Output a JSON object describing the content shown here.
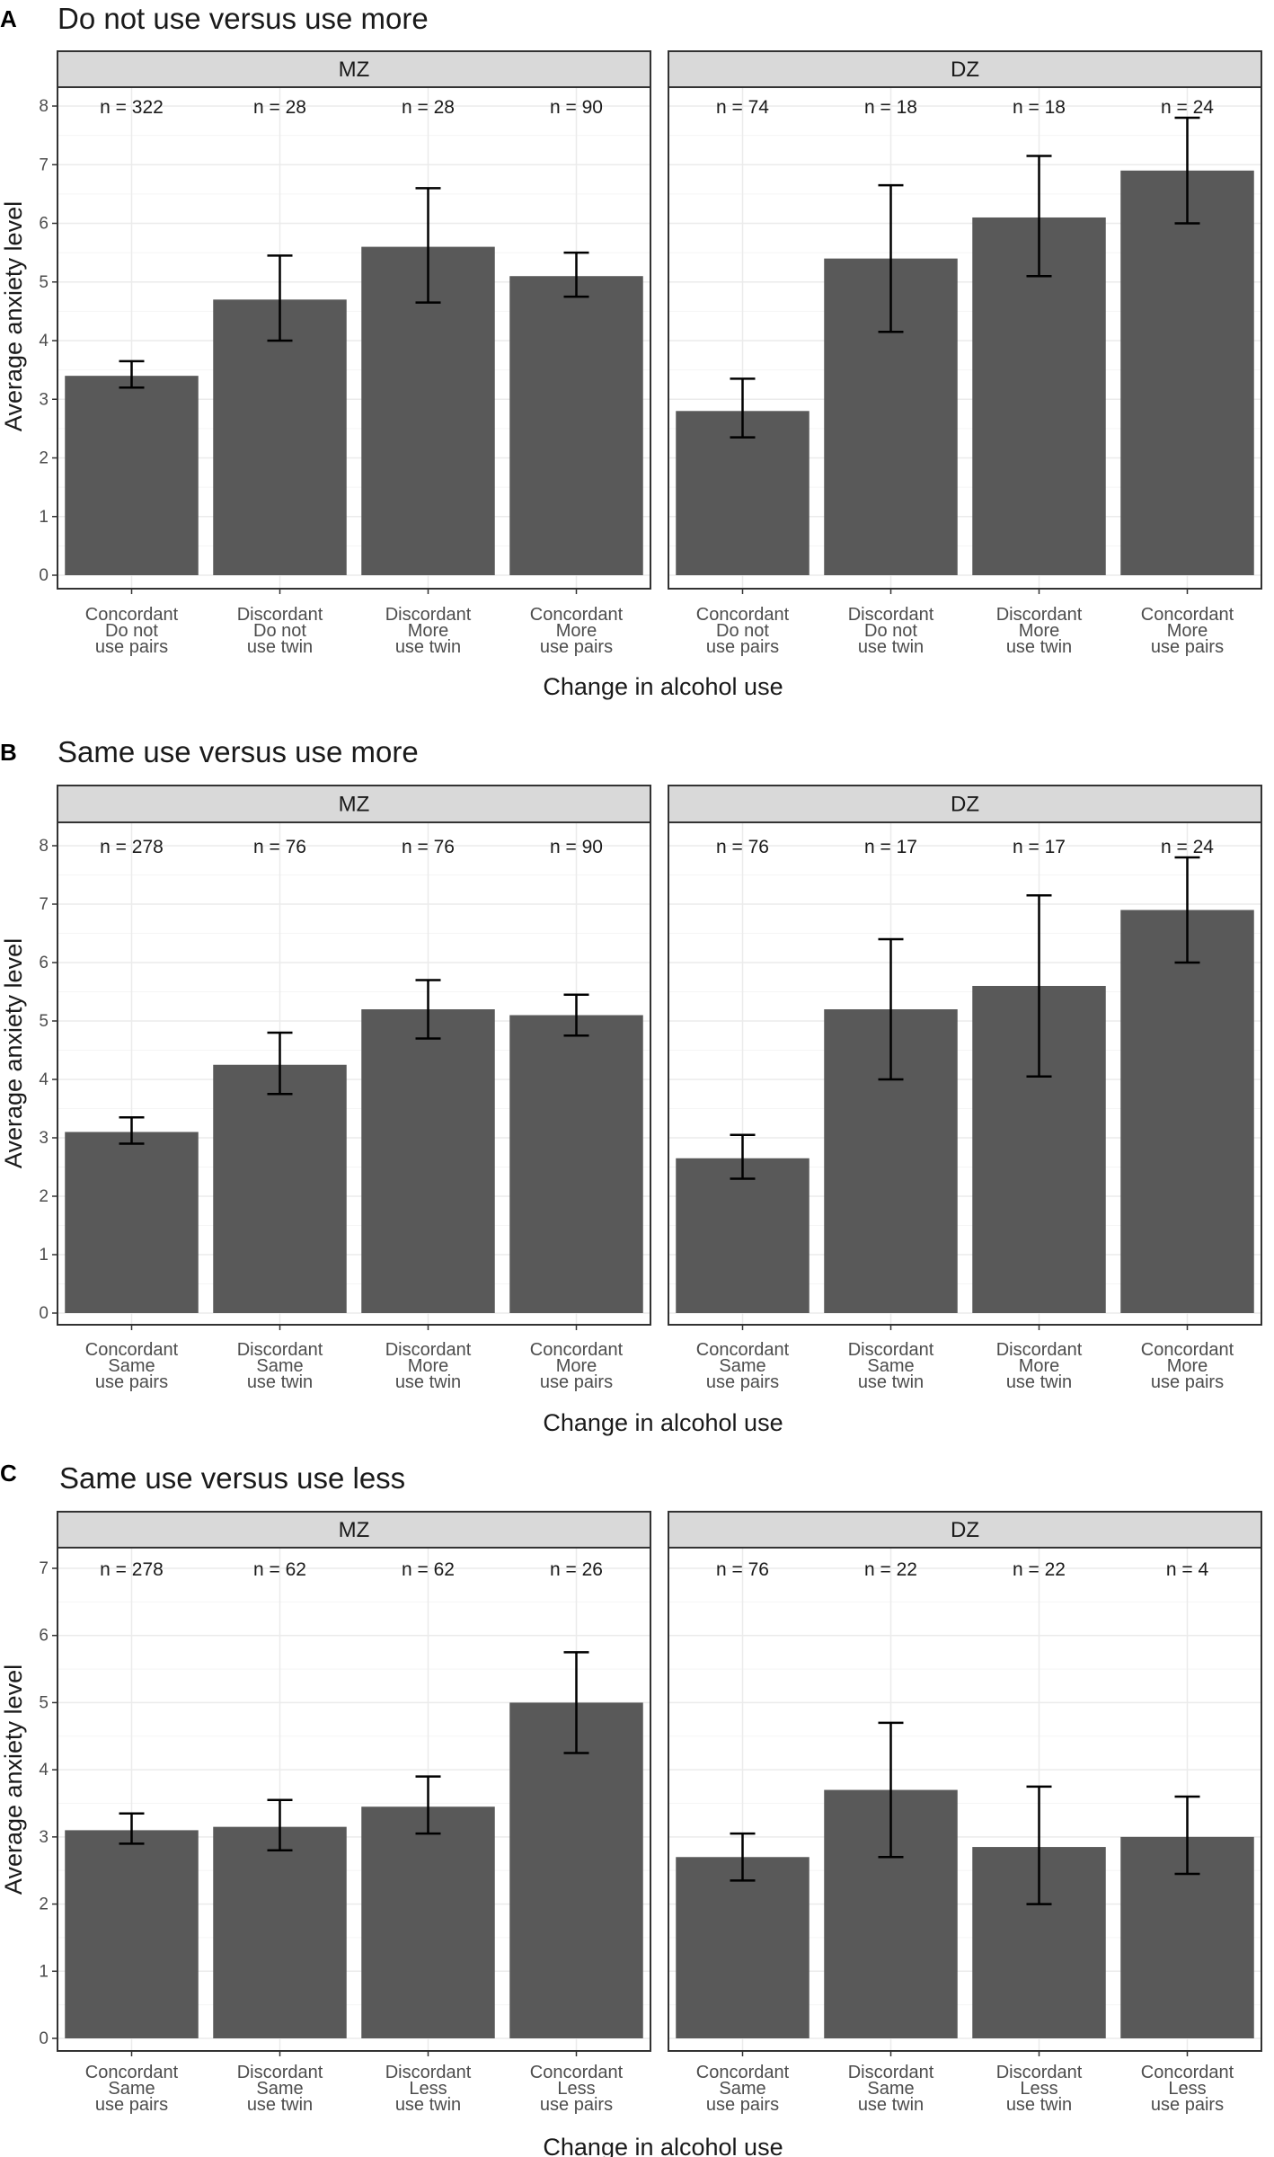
{
  "chart_data": [
    {
      "type": "bar",
      "panel_letter": "A",
      "title": "Do not use versus use more",
      "xlabel": "Change in alcohol use",
      "ylabel": "Average anxiety level",
      "ylim": [
        0,
        8
      ],
      "yticks": [
        "0",
        "1",
        "2",
        "3",
        "4",
        "5",
        "6",
        "7",
        "8"
      ],
      "categories": [
        [
          "Concordant",
          "Do not",
          "use pairs"
        ],
        [
          "Discordant",
          "Do not",
          "use twin"
        ],
        [
          "Discordant",
          "More",
          "use twin"
        ],
        [
          "Concordant",
          "More",
          "use pairs"
        ]
      ],
      "facets": [
        {
          "label": "MZ",
          "values": [
            3.4,
            4.7,
            5.6,
            5.1
          ],
          "err_low": [
            3.2,
            4.0,
            4.65,
            4.75
          ],
          "err_high": [
            3.65,
            5.45,
            6.6,
            5.5
          ],
          "n": [
            "n = 322",
            "n = 28",
            "n = 28",
            "n = 90"
          ]
        },
        {
          "label": "DZ",
          "values": [
            2.8,
            5.4,
            6.1,
            6.9
          ],
          "err_low": [
            2.35,
            4.15,
            5.1,
            6.0
          ],
          "err_high": [
            3.35,
            6.65,
            7.15,
            7.8
          ],
          "n": [
            "n = 74",
            "n = 18",
            "n = 18",
            "n = 24"
          ]
        }
      ]
    },
    {
      "type": "bar",
      "panel_letter": "B",
      "title": "Same use versus use more",
      "xlabel": "Change in alcohol use",
      "ylabel": "Average anxiety level",
      "ylim": [
        0,
        8
      ],
      "yticks": [
        "0",
        "1",
        "2",
        "3",
        "4",
        "5",
        "6",
        "7",
        "8"
      ],
      "categories": [
        [
          "Concordant",
          "Same",
          "use pairs"
        ],
        [
          "Discordant",
          "Same",
          "use twin"
        ],
        [
          "Discordant",
          "More",
          "use twin"
        ],
        [
          "Concordant",
          "More",
          "use pairs"
        ]
      ],
      "facets": [
        {
          "label": "MZ",
          "values": [
            3.1,
            4.25,
            5.2,
            5.1
          ],
          "err_low": [
            2.9,
            3.75,
            4.7,
            4.75
          ],
          "err_high": [
            3.35,
            4.8,
            5.7,
            5.45
          ],
          "n": [
            "n = 278",
            "n = 76",
            "n = 76",
            "n = 90"
          ]
        },
        {
          "label": "DZ",
          "values": [
            2.65,
            5.2,
            5.6,
            6.9
          ],
          "err_low": [
            2.3,
            4.0,
            4.05,
            6.0
          ],
          "err_high": [
            3.05,
            6.4,
            7.15,
            7.8
          ],
          "n": [
            "n = 76",
            "n = 17",
            "n = 17",
            "n = 24"
          ]
        }
      ]
    },
    {
      "type": "bar",
      "panel_letter": "C",
      "title": "Same use versus use less",
      "xlabel": "Change in alcohol use",
      "ylabel": "Average anxiety level",
      "ylim": [
        0,
        7
      ],
      "yticks": [
        "0",
        "1",
        "2",
        "3",
        "4",
        "5",
        "6",
        "7"
      ],
      "categories": [
        [
          "Concordant",
          "Same",
          "use pairs"
        ],
        [
          "Discordant",
          "Same",
          "use twin"
        ],
        [
          "Discordant",
          "Less",
          "use twin"
        ],
        [
          "Concordant",
          "Less",
          "use pairs"
        ]
      ],
      "facets": [
        {
          "label": "MZ",
          "values": [
            3.1,
            3.15,
            3.45,
            5.0
          ],
          "err_low": [
            2.9,
            2.8,
            3.05,
            4.25
          ],
          "err_high": [
            3.35,
            3.55,
            3.9,
            5.75
          ],
          "n": [
            "n = 278",
            "n = 62",
            "n = 62",
            "n = 26"
          ]
        },
        {
          "label": "DZ",
          "values": [
            2.7,
            3.7,
            2.85,
            3.0
          ],
          "err_low": [
            2.35,
            2.7,
            2.0,
            2.45
          ],
          "err_high": [
            3.05,
            4.7,
            3.75,
            3.6
          ],
          "n": [
            "n = 76",
            "n = 22",
            "n = 22",
            "n = 4"
          ]
        }
      ]
    }
  ],
  "colors": {
    "bar": "#595959",
    "panel_bg": "#ffffff",
    "strip_bg": "#d9d9d9",
    "grid_major": "#ebebeb",
    "grid_minor": "#f5f5f5",
    "frame": "#333333",
    "error_bar": "#000000"
  }
}
